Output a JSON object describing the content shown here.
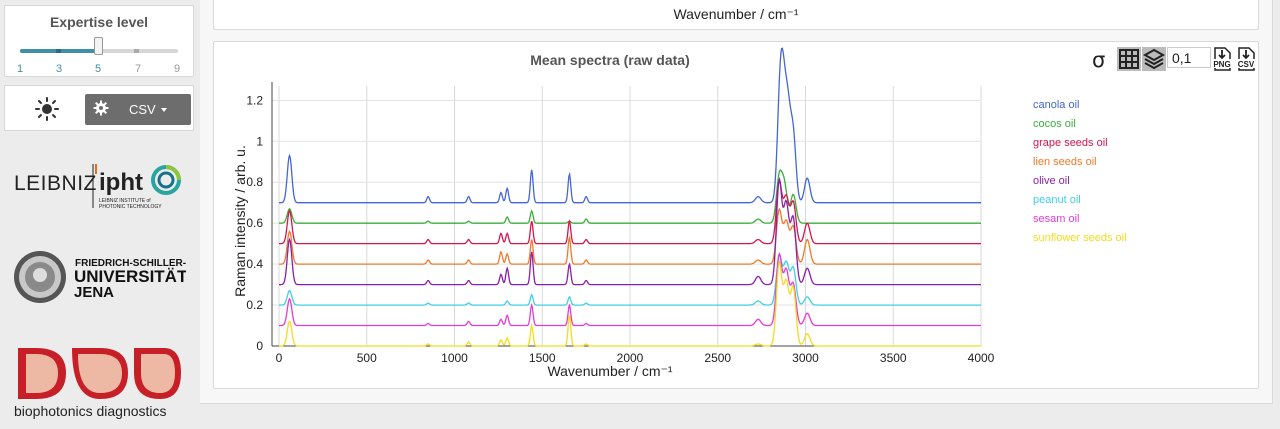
{
  "sidebar": {
    "expertise": {
      "title": "Expertise level",
      "levels": [
        "1",
        "3",
        "5",
        "7",
        "9"
      ],
      "selected": 5
    },
    "controls": {
      "theme_icon": "sun-icon",
      "export_icon": "gear-icon",
      "export_label": "CSV"
    },
    "logos": {
      "leibniz": {
        "word": "LEIBNIZ",
        "ipht": "ipht",
        "sub1": "LEIBNIZ INSTITUTE of",
        "sub2": "PHOTONIC TECHNOLOGY"
      },
      "jena": {
        "line1": "FRIEDRICH-SCHILLER-",
        "line2": "UNIVERSITÄT",
        "line3": "JENA"
      },
      "bpd": {
        "caption": "biophotonics diagnostics"
      }
    }
  },
  "top_plot": {
    "xlabel": "Wavenumber / cm⁻¹"
  },
  "toolbar": {
    "sigma_icon": "sigma-icon",
    "grid_icon": "grid-icon",
    "layers_icon": "layers-icon",
    "offset_value": "0,1",
    "png_icon": "download-png-icon",
    "csv_icon": "download-csv-icon",
    "png_label": "PNG",
    "csv_label": "CSV"
  },
  "colors": {
    "accent": "#3f8fa6",
    "canola": "#4566d6",
    "cocos": "#3aae3a",
    "grape": "#d4184e",
    "lien": "#f07a2a",
    "olive": "#8a1fa8",
    "peanut": "#3fd0e6",
    "sesam": "#e63ad8",
    "sunflower": "#f4dc1c"
  },
  "chart_data": {
    "type": "line",
    "title": "Mean spectra (raw data)",
    "xlabel": "Wavenumber / cm⁻¹",
    "ylabel": "Raman intensity / arb. u.",
    "xlim": [
      -40,
      4000
    ],
    "ylim": [
      0,
      1.27
    ],
    "xticks": [
      0,
      500,
      1000,
      1500,
      2000,
      2500,
      3000,
      3500,
      4000
    ],
    "yticks": [
      0,
      0.2,
      0.4,
      0.6,
      0.8,
      1,
      1.2
    ],
    "ytick_labels": [
      "0",
      "0.2",
      "0.4",
      "0.6",
      "0.8",
      "1",
      "1.2"
    ],
    "grid": true,
    "legend": "right",
    "series": [
      {
        "name": "canola oil",
        "color": "#4566d6",
        "offset": 0.7,
        "peaks": [
          [
            60,
            0.23
          ],
          [
            850,
            0.03
          ],
          [
            1080,
            0.03
          ],
          [
            1265,
            0.05
          ],
          [
            1300,
            0.07
          ],
          [
            1440,
            0.16
          ],
          [
            1655,
            0.14
          ],
          [
            1750,
            0.03
          ],
          [
            2730,
            0.03
          ],
          [
            2855,
            0.49
          ],
          [
            2875,
            0.4
          ],
          [
            2900,
            0.39
          ],
          [
            2930,
            0.32
          ],
          [
            3010,
            0.12
          ]
        ]
      },
      {
        "name": "cocos oil",
        "color": "#3aae3a",
        "offset": 0.6,
        "peaks": [
          [
            60,
            0.07
          ],
          [
            850,
            0.01
          ],
          [
            1080,
            0.01
          ],
          [
            1300,
            0.03
          ],
          [
            1440,
            0.06
          ],
          [
            1655,
            0.01
          ],
          [
            1750,
            0.02
          ],
          [
            2730,
            0.02
          ],
          [
            2850,
            0.22
          ],
          [
            2880,
            0.18
          ],
          [
            2930,
            0.14
          ]
        ]
      },
      {
        "name": "grape seeds oil",
        "color": "#d4184e",
        "offset": 0.5,
        "peaks": [
          [
            60,
            0.16
          ],
          [
            850,
            0.02
          ],
          [
            1080,
            0.02
          ],
          [
            1265,
            0.05
          ],
          [
            1300,
            0.05
          ],
          [
            1440,
            0.11
          ],
          [
            1655,
            0.11
          ],
          [
            1750,
            0.02
          ],
          [
            2730,
            0.02
          ],
          [
            2850,
            0.3
          ],
          [
            2890,
            0.22
          ],
          [
            2930,
            0.2
          ],
          [
            3010,
            0.1
          ]
        ]
      },
      {
        "name": "lien seeds oil",
        "color": "#f07a2a",
        "offset": 0.4,
        "peaks": [
          [
            60,
            0.16
          ],
          [
            850,
            0.02
          ],
          [
            1080,
            0.02
          ],
          [
            1265,
            0.06
          ],
          [
            1300,
            0.05
          ],
          [
            1440,
            0.12
          ],
          [
            1655,
            0.13
          ],
          [
            1750,
            0.02
          ],
          [
            2730,
            0.02
          ],
          [
            2850,
            0.26
          ],
          [
            2890,
            0.2
          ],
          [
            2930,
            0.18
          ],
          [
            3010,
            0.12
          ]
        ]
      },
      {
        "name": "olive oil",
        "color": "#8a1fa8",
        "offset": 0.3,
        "peaks": [
          [
            60,
            0.22
          ],
          [
            850,
            0.02
          ],
          [
            1080,
            0.02
          ],
          [
            1265,
            0.05
          ],
          [
            1300,
            0.08
          ],
          [
            1440,
            0.16
          ],
          [
            1655,
            0.1
          ],
          [
            1750,
            0.02
          ],
          [
            2730,
            0.04
          ],
          [
            2850,
            0.5
          ],
          [
            2890,
            0.38
          ],
          [
            2930,
            0.32
          ],
          [
            3010,
            0.08
          ]
        ]
      },
      {
        "name": "peanut oil",
        "color": "#3fd0e6",
        "offset": 0.2,
        "peaks": [
          [
            60,
            0.07
          ],
          [
            850,
            0.01
          ],
          [
            1080,
            0.01
          ],
          [
            1300,
            0.02
          ],
          [
            1440,
            0.05
          ],
          [
            1655,
            0.04
          ],
          [
            1750,
            0.01
          ],
          [
            2730,
            0.02
          ],
          [
            2850,
            0.24
          ],
          [
            2890,
            0.2
          ],
          [
            2930,
            0.18
          ],
          [
            3010,
            0.04
          ]
        ]
      },
      {
        "name": "sesam oil",
        "color": "#e63ad8",
        "offset": 0.1,
        "peaks": [
          [
            60,
            0.13
          ],
          [
            850,
            0.01
          ],
          [
            1080,
            0.02
          ],
          [
            1265,
            0.03
          ],
          [
            1300,
            0.05
          ],
          [
            1440,
            0.1
          ],
          [
            1655,
            0.1
          ],
          [
            1750,
            0.01
          ],
          [
            2730,
            0.03
          ],
          [
            2850,
            0.34
          ],
          [
            2890,
            0.26
          ],
          [
            2930,
            0.2
          ],
          [
            3010,
            0.06
          ]
        ]
      },
      {
        "name": "sunflower seeds oil",
        "color": "#f4dc1c",
        "offset": 0.0,
        "peaks": [
          [
            60,
            0.12
          ],
          [
            850,
            0.01
          ],
          [
            1080,
            0.02
          ],
          [
            1265,
            0.03
          ],
          [
            1300,
            0.04
          ],
          [
            1440,
            0.1
          ],
          [
            1655,
            0.15
          ],
          [
            1750,
            0.01
          ],
          [
            2730,
            0.01
          ],
          [
            2850,
            0.4
          ],
          [
            2890,
            0.3
          ],
          [
            2930,
            0.28
          ],
          [
            3010,
            0.06
          ]
        ]
      }
    ]
  }
}
